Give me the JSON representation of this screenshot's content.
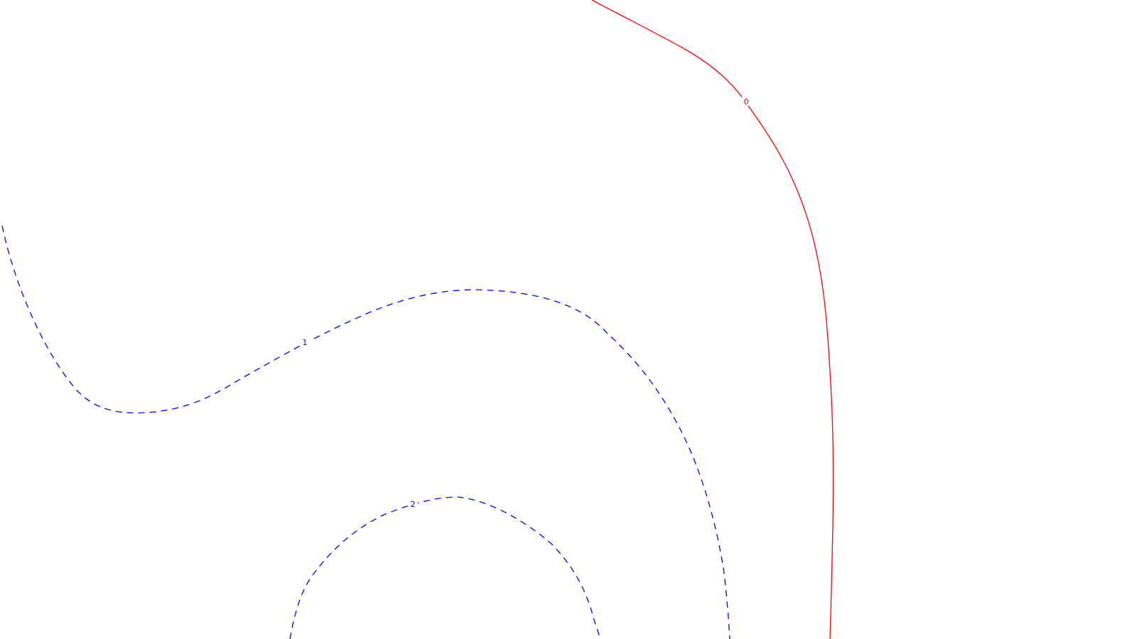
{
  "contours": [
    {
      "level": "0",
      "color": "#ff0000",
      "style": "solid"
    },
    {
      "level": "1",
      "color": "#0000ff",
      "style": "dashed"
    },
    {
      "level": "2",
      "color": "#0000ff",
      "style": "dashed"
    }
  ]
}
